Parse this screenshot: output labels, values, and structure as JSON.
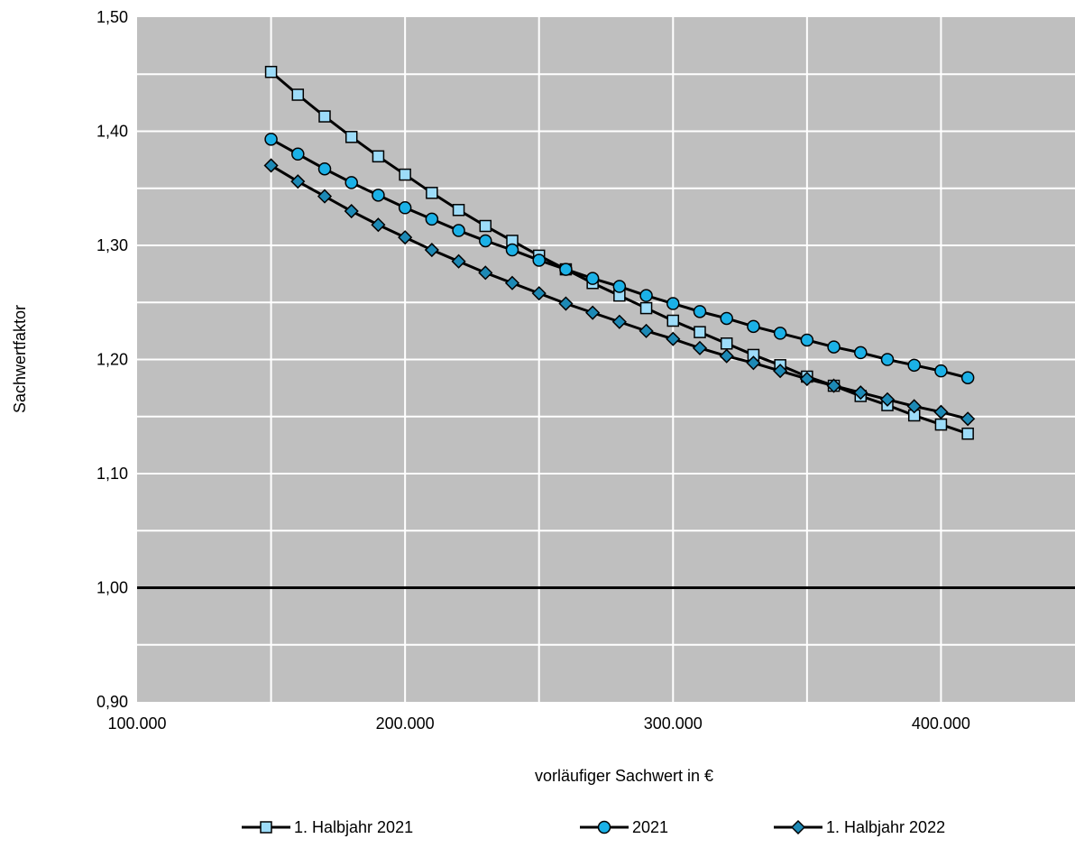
{
  "chart_data": {
    "type": "line",
    "title": "",
    "xlabel": "vorläufiger Sachwert in €",
    "ylabel": "Sachwertfaktor",
    "xlim": [
      100000,
      450000
    ],
    "ylim": [
      0.9,
      1.5
    ],
    "x_ticks": [
      100000,
      200000,
      300000,
      400000
    ],
    "x_tick_labels": [
      "100.000",
      "200.000",
      "300.000",
      "400.000"
    ],
    "y_ticks": [
      0.9,
      1.0,
      1.1,
      1.2,
      1.3,
      1.4,
      1.5
    ],
    "y_tick_labels": [
      "0,90",
      "1,00",
      "1,10",
      "1,20",
      "1,30",
      "1,40",
      "1,50"
    ],
    "grid": true,
    "background_color": "#BFBFBF",
    "grid_color": "#FFFFFF",
    "reference_line": {
      "y": 1.0,
      "color": "#000000"
    },
    "legend_position": "bottom",
    "x": [
      150000,
      160000,
      170000,
      180000,
      190000,
      200000,
      210000,
      220000,
      230000,
      240000,
      250000,
      260000,
      270000,
      280000,
      290000,
      300000,
      310000,
      320000,
      330000,
      340000,
      350000,
      360000,
      370000,
      380000,
      390000,
      400000,
      410000
    ],
    "series": [
      {
        "name": "1. Halbjahr 2021",
        "marker": "square",
        "color": "#9DDCF9",
        "values": [
          1.452,
          1.432,
          1.413,
          1.395,
          1.378,
          1.362,
          1.346,
          1.331,
          1.317,
          1.304,
          1.291,
          1.279,
          1.267,
          1.256,
          1.245,
          1.234,
          1.224,
          1.214,
          1.204,
          1.195,
          1.185,
          1.177,
          1.168,
          1.16,
          1.151,
          1.143,
          1.135
        ]
      },
      {
        "name": "2021",
        "marker": "circle",
        "color": "#1BB1E7",
        "values": [
          1.393,
          1.38,
          1.367,
          1.355,
          1.344,
          1.333,
          1.323,
          1.313,
          1.304,
          1.296,
          1.287,
          1.279,
          1.271,
          1.264,
          1.256,
          1.249,
          1.242,
          1.236,
          1.229,
          1.223,
          1.217,
          1.211,
          1.206,
          1.2,
          1.195,
          1.19,
          1.184
        ]
      },
      {
        "name": "1. Halbjahr 2022",
        "marker": "diamond",
        "color": "#1D89B5",
        "values": [
          1.37,
          1.356,
          1.343,
          1.33,
          1.318,
          1.307,
          1.296,
          1.286,
          1.276,
          1.267,
          1.258,
          1.249,
          1.241,
          1.233,
          1.225,
          1.218,
          1.21,
          1.203,
          1.197,
          1.19,
          1.183,
          1.177,
          1.171,
          1.165,
          1.159,
          1.154,
          1.148
        ]
      }
    ]
  }
}
